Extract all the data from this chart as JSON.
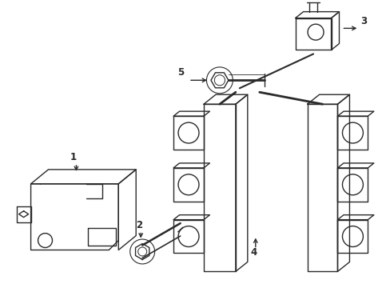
{
  "background_color": "#ffffff",
  "line_color": "#2a2a2a",
  "line_width": 1.0,
  "label_color": "#000000",
  "label_fontsize": 8.5,
  "figsize": [
    4.89,
    3.6
  ],
  "dpi": 100
}
